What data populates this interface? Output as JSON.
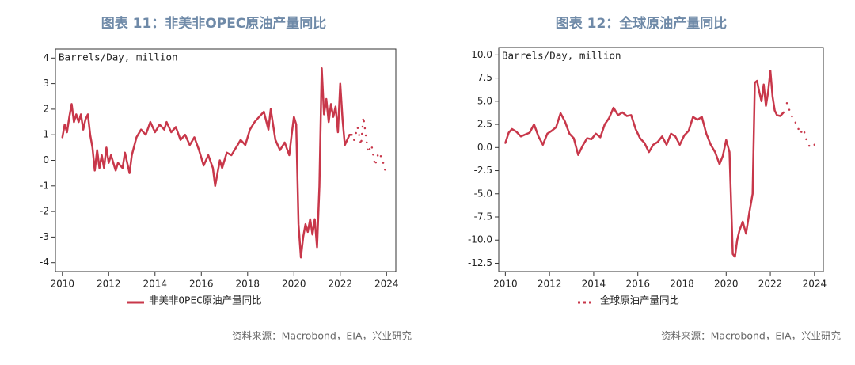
{
  "chart_data": [
    {
      "type": "line",
      "title": "图表 11：非美非OPEC原油产量同比",
      "y_label": "Barrels/Day, million",
      "source": "资料来源：Macrobond，EIA，兴业研究",
      "legend_marker": "solid",
      "xlim": [
        2009.7,
        2024.4
      ],
      "xticks": [
        2010,
        2012,
        2014,
        2016,
        2018,
        2020,
        2022,
        2024
      ],
      "ylim": [
        -4.35,
        4.35
      ],
      "yticks": [
        -4,
        -3,
        -2,
        -1,
        0,
        1,
        2,
        3,
        4
      ],
      "series": [
        {
          "name": "非美非OPEC原油产量同比",
          "color": "#c8374a",
          "style": "solid",
          "x": [
            2010.0,
            2010.1,
            2010.2,
            2010.3,
            2010.4,
            2010.5,
            2010.6,
            2010.7,
            2010.8,
            2010.9,
            2011.0,
            2011.1,
            2011.2,
            2011.3,
            2011.4,
            2011.5,
            2011.6,
            2011.7,
            2011.8,
            2011.9,
            2012.0,
            2012.1,
            2012.3,
            2012.4,
            2012.6,
            2012.7,
            2012.9,
            2013.0,
            2013.2,
            2013.4,
            2013.6,
            2013.8,
            2014.0,
            2014.2,
            2014.4,
            2014.5,
            2014.7,
            2014.9,
            2015.1,
            2015.3,
            2015.5,
            2015.7,
            2015.9,
            2016.1,
            2016.3,
            2016.5,
            2016.6,
            2016.8,
            2016.9,
            2017.1,
            2017.3,
            2017.5,
            2017.7,
            2017.9,
            2018.1,
            2018.3,
            2018.5,
            2018.7,
            2018.9,
            2019.0,
            2019.2,
            2019.4,
            2019.6,
            2019.8,
            2019.9,
            2020.0,
            2020.1,
            2020.2,
            2020.3,
            2020.4,
            2020.5,
            2020.6,
            2020.7,
            2020.8,
            2020.9,
            2021.0,
            2021.1,
            2021.2,
            2021.3,
            2021.4,
            2021.5,
            2021.6,
            2021.7,
            2021.8,
            2021.9,
            2022.0,
            2022.1,
            2022.2,
            2022.3,
            2022.4,
            2022.5
          ],
          "values": [
            0.9,
            1.4,
            1.1,
            1.7,
            2.2,
            1.5,
            1.8,
            1.5,
            1.8,
            1.2,
            1.6,
            1.8,
            1.0,
            0.5,
            -0.4,
            0.4,
            -0.3,
            0.2,
            -0.3,
            0.5,
            -0.1,
            0.2,
            -0.4,
            -0.1,
            -0.3,
            0.3,
            -0.5,
            0.2,
            0.9,
            1.2,
            1.0,
            1.5,
            1.1,
            1.4,
            1.2,
            1.5,
            1.1,
            1.3,
            0.8,
            1.0,
            0.6,
            0.9,
            0.4,
            -0.2,
            0.2,
            -0.3,
            -1.0,
            0.0,
            -0.3,
            0.3,
            0.2,
            0.5,
            0.8,
            0.6,
            1.2,
            1.5,
            1.7,
            1.9,
            1.2,
            2.0,
            0.8,
            0.4,
            0.7,
            0.2,
            1.0,
            1.7,
            1.4,
            -2.5,
            -3.8,
            -3.0,
            -2.5,
            -2.8,
            -2.3,
            -2.9,
            -2.3,
            -3.4,
            -1.0,
            3.6,
            1.8,
            2.4,
            1.5,
            2.2,
            1.7,
            2.1,
            1.1,
            3.0,
            1.6,
            0.6,
            0.8,
            1.0,
            1.0
          ]
        },
        {
          "color": "#c8374a",
          "style": "dotted",
          "x": [
            2022.6,
            2022.75,
            2022.9,
            2023.0,
            2023.1,
            2023.2,
            2023.35,
            2023.5,
            2023.65,
            2023.8,
            2024.0
          ],
          "values": [
            0.8,
            1.3,
            0.6,
            1.7,
            1.0,
            0.3,
            0.6,
            -0.2,
            0.3,
            0.1,
            -0.6
          ]
        }
      ]
    },
    {
      "type": "line",
      "title": "图表 12：全球原油产量同比",
      "y_label": "Barrels/Day, million",
      "source": "资料来源：Macrobond，EIA，兴业研究",
      "legend_marker": "dotted",
      "xlim": [
        2009.7,
        2024.4
      ],
      "xticks": [
        2010,
        2012,
        2014,
        2016,
        2018,
        2020,
        2022,
        2024
      ],
      "ylim": [
        -13.4,
        10.8
      ],
      "yticks": [
        {
          "value": -12.5,
          "label": "-12.5"
        },
        {
          "value": -10,
          "label": "-10.0"
        },
        {
          "value": -7.5,
          "label": "-7.5"
        },
        {
          "value": -5,
          "label": "-5.0"
        },
        {
          "value": -2.5,
          "label": "-2.5"
        },
        {
          "value": 0,
          "label": "0.0"
        },
        {
          "value": 2.5,
          "label": "2.5"
        },
        {
          "value": 5,
          "label": "5.0"
        },
        {
          "value": 7.5,
          "label": "7.5"
        },
        {
          "value": 10,
          "label": "10.0"
        }
      ],
      "series": [
        {
          "name": "全球原油产量同比",
          "color": "#c8374a",
          "style": "solid",
          "x": [
            2010.0,
            2010.15,
            2010.3,
            2010.5,
            2010.7,
            2010.9,
            2011.1,
            2011.3,
            2011.5,
            2011.7,
            2011.9,
            2012.1,
            2012.3,
            2012.5,
            2012.7,
            2012.9,
            2013.1,
            2013.3,
            2013.5,
            2013.7,
            2013.9,
            2014.1,
            2014.3,
            2014.5,
            2014.7,
            2014.9,
            2015.1,
            2015.3,
            2015.5,
            2015.7,
            2015.9,
            2016.1,
            2016.3,
            2016.5,
            2016.7,
            2016.9,
            2017.1,
            2017.3,
            2017.5,
            2017.7,
            2017.9,
            2018.1,
            2018.3,
            2018.5,
            2018.7,
            2018.9,
            2019.1,
            2019.3,
            2019.5,
            2019.7,
            2019.85,
            2020.0,
            2020.15,
            2020.3,
            2020.4,
            2020.5,
            2020.6,
            2020.75,
            2020.9,
            2021.05,
            2021.2,
            2021.3,
            2021.4,
            2021.5,
            2021.6,
            2021.7,
            2021.8,
            2021.9,
            2022.0,
            2022.1,
            2022.2,
            2022.3,
            2022.45,
            2022.6
          ],
          "values": [
            0.5,
            1.6,
            2.0,
            1.7,
            1.2,
            1.4,
            1.6,
            2.5,
            1.2,
            0.3,
            1.5,
            1.8,
            2.2,
            3.7,
            2.8,
            1.5,
            1.0,
            -0.8,
            0.2,
            1.0,
            0.9,
            1.5,
            1.1,
            2.5,
            3.2,
            4.3,
            3.5,
            3.8,
            3.4,
            3.5,
            2.0,
            1.0,
            0.5,
            -0.5,
            0.3,
            0.6,
            1.2,
            0.3,
            1.5,
            1.2,
            0.3,
            1.3,
            1.8,
            3.3,
            3.0,
            3.3,
            1.5,
            0.3,
            -0.5,
            -1.8,
            -0.9,
            0.8,
            -0.5,
            -11.5,
            -11.8,
            -10.0,
            -9.0,
            -8.0,
            -9.3,
            -7.0,
            -5.0,
            7.0,
            7.2,
            6.0,
            5.0,
            6.8,
            4.5,
            6.0,
            8.3,
            5.5,
            4.0,
            3.5,
            3.4,
            3.8
          ]
        },
        {
          "color": "#c8374a",
          "style": "dotted",
          "x": [
            2022.75,
            2022.9,
            2023.05,
            2023.2,
            2023.35,
            2023.5,
            2023.65,
            2023.8,
            2024.0
          ],
          "values": [
            4.8,
            3.8,
            3.0,
            2.5,
            1.5,
            2.0,
            0.7,
            0.0,
            0.3
          ]
        }
      ]
    }
  ]
}
